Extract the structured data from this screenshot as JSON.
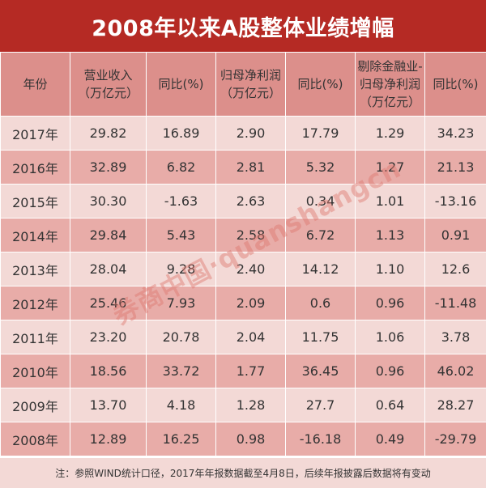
{
  "title": "2008年以来A股整体业绩增幅",
  "headers": [
    [
      "年份"
    ],
    [
      "营业收入",
      "（万亿元）"
    ],
    [
      "同比(%)"
    ],
    [
      "归母净利润",
      "（万亿元）"
    ],
    [
      "同比(%)"
    ],
    [
      "剔除金融业-",
      "归母净利润",
      "（万亿元）"
    ],
    [
      "同比(%)"
    ]
  ],
  "rows": [
    [
      "2017年",
      "29.82",
      "16.89",
      "2.90",
      "17.79",
      "1.29",
      "34.23"
    ],
    [
      "2016年",
      "32.89",
      "6.82",
      "2.81",
      "5.32",
      "1.27",
      "21.13"
    ],
    [
      "2015年",
      "30.30",
      "-1.63",
      "2.63",
      "0.34",
      "1.01",
      "-13.16"
    ],
    [
      "2014年",
      "29.84",
      "5.43",
      "2.58",
      "6.72",
      "1.13",
      "0.91"
    ],
    [
      "2013年",
      "28.04",
      "9.28",
      "2.40",
      "14.12",
      "1.10",
      "12.6"
    ],
    [
      "2012年",
      "25.46",
      "7.93",
      "2.09",
      "0.6",
      "0.96",
      "-11.48"
    ],
    [
      "2011年",
      "23.20",
      "20.78",
      "2.04",
      "11.75",
      "1.06",
      "3.78"
    ],
    [
      "2010年",
      "18.56",
      "33.72",
      "1.77",
      "36.45",
      "0.96",
      "46.02"
    ],
    [
      "2009年",
      "13.70",
      "4.18",
      "1.28",
      "27.7",
      "0.64",
      "28.27"
    ],
    [
      "2008年",
      "12.89",
      "16.25",
      "0.98",
      "-16.18",
      "0.49",
      "-29.79"
    ]
  ],
  "note": "注：参照WIND统计口径，2017年年报数据截至4月8日，后续年报披露后数据将有变动",
  "watermark": "券商中国·quanshangcn",
  "colors": {
    "title_bg": "#b52a24",
    "header_bg": "#dc8f8b",
    "row_light": "#f3d9d6",
    "row_dark": "#e8aca8"
  }
}
